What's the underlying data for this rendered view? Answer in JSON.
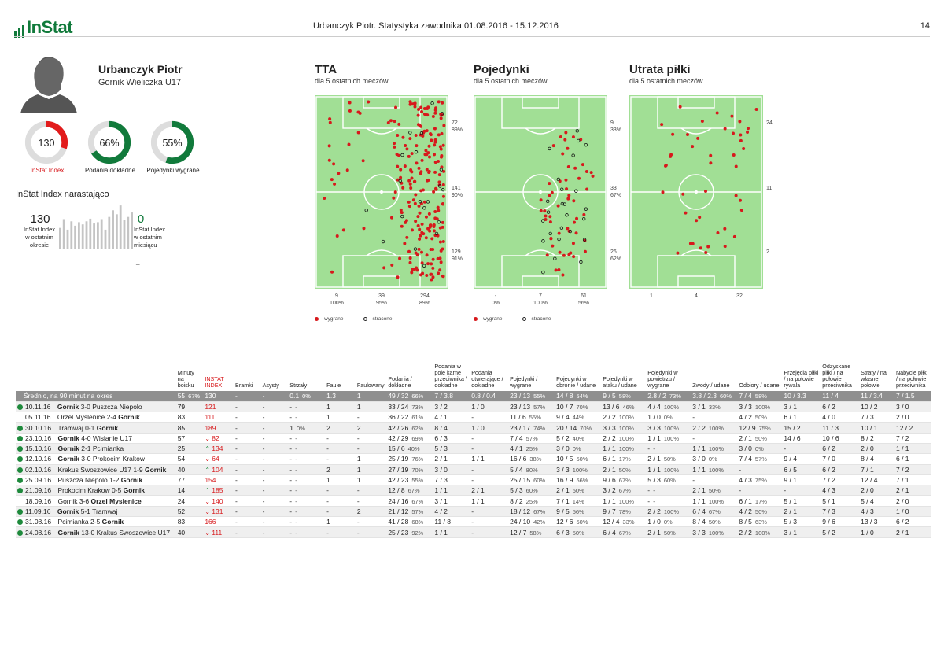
{
  "header": {
    "logo": "InStat",
    "title": "Urbanczyk Piotr. Statystyka zawodnika 01.08.2016 - 15.12.2016",
    "page": "14"
  },
  "player": {
    "name": "Urbanczyk Piotr",
    "team": "Gornik Wieliczka U17"
  },
  "donuts": [
    {
      "value": "130",
      "label": "InStat Index",
      "fraction": 0.3,
      "color": "#e21b1b",
      "label_color": "#d7191c"
    },
    {
      "value": "66%",
      "label": "Podania dokładne",
      "fraction": 0.66,
      "color": "#117a3b",
      "label_color": "#222"
    },
    {
      "value": "55%",
      "label": "Pojedynki wygrane",
      "fraction": 0.55,
      "color": "#117a3b",
      "label_color": "#222"
    }
  ],
  "cumulative": {
    "title": "InStat Index narastająco",
    "left_value": "130",
    "left_caption_1": "InStat Index",
    "left_caption_2": "w ostatnim",
    "left_caption_3": "okresie",
    "right_value": "0",
    "right_caption_1": "InStat Index",
    "right_caption_2": "w ostatnim",
    "right_caption_3": "miesiącu",
    "tail": "_",
    "bars": [
      0.47,
      0.67,
      0.43,
      0.62,
      0.52,
      0.6,
      0.55,
      0.62,
      0.68,
      0.57,
      0.6,
      0.67,
      0.43,
      0.72,
      0.87,
      0.78,
      0.98,
      0.65,
      0.72,
      0.82
    ]
  },
  "maps": [
    {
      "title": "TTA",
      "subtitle": "dla 5 ostatnich meczów",
      "side": [
        [
          "72",
          "89%"
        ],
        [
          "141",
          "90%"
        ],
        [
          "129",
          "91%"
        ]
      ],
      "bottom": [
        [
          "9",
          "100%"
        ],
        [
          "39",
          "95%"
        ],
        [
          "294",
          "89%"
        ]
      ],
      "legend_won": "- wygrane",
      "legend_lost": "- stracone"
    },
    {
      "title": "Pojedynki",
      "subtitle": "dla 5 ostatnich meczów",
      "side": [
        [
          "9",
          "33%"
        ],
        [
          "33",
          "67%"
        ],
        [
          "26",
          "62%"
        ]
      ],
      "bottom": [
        [
          "-",
          "0%"
        ],
        [
          "7",
          "100%"
        ],
        [
          "61",
          "56%"
        ]
      ],
      "legend_won": "- wygrane",
      "legend_lost": "- stracone"
    },
    {
      "title": "Utrata piłki",
      "subtitle": "dla 5 ostatnich meczów",
      "side": [
        [
          "24",
          ""
        ],
        [
          "11",
          ""
        ],
        [
          "2",
          ""
        ]
      ],
      "bottom": [
        [
          "1",
          ""
        ],
        [
          "4",
          ""
        ],
        [
          "32",
          ""
        ]
      ]
    }
  ],
  "table": {
    "headers": [
      "",
      "Minuty na boisku",
      "INSTAT INDEX",
      "Bramki",
      "Asysty",
      "Strzały",
      "Faule",
      "Faulowany",
      "Podania / dokładne",
      "Podania w pole karne przeciwnika / dokładne",
      "Podania otwierające / dokładne",
      "Pojedynki / wygrane",
      "Pojedynki w obronie / udane",
      "Pojedynki w ataku / udane",
      "Pojedynki w powietrzu / wygrane",
      "Zwody / udane",
      "Odbiory / udane",
      "Przejęcia piłki / na połowie rywala",
      "Odzyskane piłki / na połowie przeciwnika",
      "Straty / na własnej połowie",
      "Nabycie piłki / na połowie przeciwnika"
    ],
    "avg_row": [
      "Średnio, na 90 minut na okres",
      "55",
      "67%",
      "130",
      "-",
      "-",
      "0.1",
      "0%",
      "1.3",
      "1",
      "49 / 32",
      "66%",
      "7 / 3.8",
      "0.8 / 0.4",
      "23 / 13",
      "55%",
      "14 / 8",
      "54%",
      "9 / 5",
      "58%",
      "2.8 / 2",
      "73%",
      "3.8 / 2.3",
      "60%",
      "7 / 4",
      "58%",
      "10 / 3.3",
      "11 / 4",
      "11 / 3.4",
      "7 / 1.5"
    ],
    "rows": [
      {
        "date": "10.11.16",
        "dot": true,
        "pre": "",
        "bold": "Gornik",
        "mid": " 3-0 Puszcza Niepolo",
        "post": "",
        "min": "79",
        "arrow": "",
        "idx": "121",
        "b": "-",
        "a": "-",
        "s": "-",
        "sp": "-",
        "f": "1",
        "fl": "1",
        "p": "33 / 24",
        "pp": "73%",
        "pk": "3 / 2",
        "po": "1 / 0",
        "pw": "23 / 13",
        "pwp": "57%",
        "pd": "10 / 7",
        "pdp": "70%",
        "pa": "13 / 6",
        "pap": "46%",
        "ph": "4 / 4",
        "php": "100%",
        "z": "3 / 1",
        "zp": "33%",
        "o": "3 / 3",
        "op": "100%",
        "pr": "3 / 1",
        "od": "6 / 2",
        "st": "10 / 2",
        "nb": "3 / 0"
      },
      {
        "date": "05.11.16",
        "dot": false,
        "pre": "Orzel Myslenice 2-4 ",
        "bold": "Gornik",
        "mid": "",
        "post": "",
        "min": "83",
        "arrow": "",
        "idx": "111",
        "b": "-",
        "a": "-",
        "s": "-",
        "sp": "-",
        "f": "1",
        "fl": "-",
        "p": "36 / 22",
        "pp": "61%",
        "pk": "4 / 1",
        "po": "-",
        "pw": "11 / 6",
        "pwp": "55%",
        "pd": "9 / 4",
        "pdp": "44%",
        "pa": "2 / 2",
        "pap": "100%",
        "ph": "1 / 0",
        "php": "0%",
        "z": "-",
        "zp": "",
        "o": "4 / 2",
        "op": "50%",
        "pr": "6 / 1",
        "od": "4 / 0",
        "st": "7 / 3",
        "nb": "2 / 0"
      },
      {
        "date": "30.10.16",
        "dot": true,
        "pre": "Tramwaj 0-1 ",
        "bold": "Gornik",
        "mid": "",
        "post": "",
        "min": "85",
        "arrow": "",
        "idx": "189",
        "b": "-",
        "a": "-",
        "s": "1",
        "sp": "0%",
        "f": "2",
        "fl": "2",
        "p": "42 / 26",
        "pp": "62%",
        "pk": "8 / 4",
        "po": "1 / 0",
        "pw": "23 / 17",
        "pwp": "74%",
        "pd": "20 / 14",
        "pdp": "70%",
        "pa": "3 / 3",
        "pap": "100%",
        "ph": "3 / 3",
        "php": "100%",
        "z": "2 / 2",
        "zp": "100%",
        "o": "12 / 9",
        "op": "75%",
        "pr": "15 / 2",
        "od": "11 / 3",
        "st": "10 / 1",
        "nb": "12 / 2"
      },
      {
        "date": "23.10.16",
        "dot": true,
        "pre": "",
        "bold": "Gornik",
        "mid": " 4-0 Wislanie U17",
        "post": "",
        "min": "57",
        "arrow": "dn",
        "idx": "82",
        "b": "-",
        "a": "-",
        "s": "-",
        "sp": "-",
        "f": "-",
        "fl": "-",
        "p": "42 / 29",
        "pp": "69%",
        "pk": "6 / 3",
        "po": "-",
        "pw": "7 / 4",
        "pwp": "57%",
        "pd": "5 / 2",
        "pdp": "40%",
        "pa": "2 / 2",
        "pap": "100%",
        "ph": "1 / 1",
        "php": "100%",
        "z": "-",
        "zp": "",
        "o": "2 / 1",
        "op": "50%",
        "pr": "14 / 6",
        "od": "10 / 6",
        "st": "8 / 2",
        "nb": "7 / 2"
      },
      {
        "date": "15.10.16",
        "dot": true,
        "pre": "",
        "bold": "Gornik",
        "mid": " 2-1 Pcimianka",
        "post": "",
        "min": "25",
        "arrow": "up",
        "idx": "134",
        "b": "-",
        "a": "-",
        "s": "-",
        "sp": "-",
        "f": "-",
        "fl": "-",
        "p": "15 / 6",
        "pp": "40%",
        "pk": "5 / 3",
        "po": "-",
        "pw": "4 / 1",
        "pwp": "25%",
        "pd": "3 / 0",
        "pdp": "0%",
        "pa": "1 / 1",
        "pap": "100%",
        "ph": "-",
        "php": "-",
        "z": "1 / 1",
        "zp": "100%",
        "o": "3 / 0",
        "op": "0%",
        "pr": "-",
        "od": "6 / 2",
        "st": "2 / 0",
        "nb": "1 / 1"
      },
      {
        "date": "12.10.16",
        "dot": true,
        "pre": "",
        "bold": "Gornik",
        "mid": " 3-0 Prokocim Krakow",
        "post": "",
        "min": "54",
        "arrow": "dn",
        "idx": "64",
        "b": "-",
        "a": "-",
        "s": "-",
        "sp": "-",
        "f": "-",
        "fl": "1",
        "p": "25 / 19",
        "pp": "76%",
        "pk": "2 / 1",
        "po": "1 / 1",
        "pw": "16 / 6",
        "pwp": "38%",
        "pd": "10 / 5",
        "pdp": "50%",
        "pa": "6 / 1",
        "pap": "17%",
        "ph": "2 / 1",
        "php": "50%",
        "z": "3 / 0",
        "zp": "0%",
        "o": "7 / 4",
        "op": "57%",
        "pr": "9 / 4",
        "od": "7 / 0",
        "st": "8 / 4",
        "nb": "6 / 1"
      },
      {
        "date": "02.10.16",
        "dot": true,
        "pre": "Krakus Swoszowice U17 1-9 ",
        "bold": "Gornik",
        "mid": "",
        "post": "",
        "min": "40",
        "arrow": "up",
        "idx": "104",
        "b": "-",
        "a": "-",
        "s": "-",
        "sp": "-",
        "f": "2",
        "fl": "1",
        "p": "27 / 19",
        "pp": "70%",
        "pk": "3 / 0",
        "po": "-",
        "pw": "5 / 4",
        "pwp": "80%",
        "pd": "3 / 3",
        "pdp": "100%",
        "pa": "2 / 1",
        "pap": "50%",
        "ph": "1 / 1",
        "php": "100%",
        "z": "1 / 1",
        "zp": "100%",
        "o": "-",
        "op": "",
        "pr": "6 / 5",
        "od": "6 / 2",
        "st": "7 / 1",
        "nb": "7 / 2"
      },
      {
        "date": "25.09.16",
        "dot": true,
        "pre": "Puszcza Niepolo 1-2 ",
        "bold": "Gornik",
        "mid": "",
        "post": "",
        "min": "77",
        "arrow": "",
        "idx": "154",
        "b": "-",
        "a": "-",
        "s": "-",
        "sp": "-",
        "f": "1",
        "fl": "1",
        "p": "42 / 23",
        "pp": "55%",
        "pk": "7 / 3",
        "po": "-",
        "pw": "25 / 15",
        "pwp": "60%",
        "pd": "16 / 9",
        "pdp": "56%",
        "pa": "9 / 6",
        "pap": "67%",
        "ph": "5 / 3",
        "php": "60%",
        "z": "-",
        "zp": "",
        "o": "4 / 3",
        "op": "75%",
        "pr": "9 / 1",
        "od": "7 / 2",
        "st": "12 / 4",
        "nb": "7 / 1"
      },
      {
        "date": "21.09.16",
        "dot": true,
        "pre": "Prokocim Krakow 0-5 ",
        "bold": "Gornik",
        "mid": "",
        "post": "",
        "min": "14",
        "arrow": "up",
        "idx": "185",
        "b": "-",
        "a": "-",
        "s": "-",
        "sp": "-",
        "f": "-",
        "fl": "-",
        "p": "12 / 8",
        "pp": "67%",
        "pk": "1 / 1",
        "po": "2 / 1",
        "pw": "5 / 3",
        "pwp": "60%",
        "pd": "2 / 1",
        "pdp": "50%",
        "pa": "3 / 2",
        "pap": "67%",
        "ph": "-",
        "php": "-",
        "z": "2 / 1",
        "zp": "50%",
        "o": "-",
        "op": "",
        "pr": "-",
        "od": "4 / 3",
        "st": "2 / 0",
        "nb": "2 / 1"
      },
      {
        "date": "18.09.16",
        "dot": false,
        "pre": "Gornik 3-6 ",
        "bold": "Orzel Myslenice",
        "mid": "",
        "post": "",
        "min": "24",
        "arrow": "dn",
        "idx": "140",
        "b": "-",
        "a": "-",
        "s": "-",
        "sp": "-",
        "f": "-",
        "fl": "-",
        "p": "24 / 16",
        "pp": "67%",
        "pk": "3 / 1",
        "po": "1 / 1",
        "pw": "8 / 2",
        "pwp": "25%",
        "pd": "7 / 1",
        "pdp": "14%",
        "pa": "1 / 1",
        "pap": "100%",
        "ph": "-",
        "php": "-",
        "z": "1 / 1",
        "zp": "100%",
        "o": "6 / 1",
        "op": "17%",
        "pr": "5 / 1",
        "od": "5 / 1",
        "st": "5 / 4",
        "nb": "2 / 0"
      },
      {
        "date": "11.09.16",
        "dot": true,
        "pre": "",
        "bold": "Gornik",
        "mid": " 5-1 Tramwaj",
        "post": "",
        "min": "52",
        "arrow": "dn",
        "idx": "131",
        "b": "-",
        "a": "-",
        "s": "-",
        "sp": "-",
        "f": "-",
        "fl": "2",
        "p": "21 / 12",
        "pp": "57%",
        "pk": "4 / 2",
        "po": "-",
        "pw": "18 / 12",
        "pwp": "67%",
        "pd": "9 / 5",
        "pdp": "56%",
        "pa": "9 / 7",
        "pap": "78%",
        "ph": "2 / 2",
        "php": "100%",
        "z": "6 / 4",
        "zp": "67%",
        "o": "4 / 2",
        "op": "50%",
        "pr": "2 / 1",
        "od": "7 / 3",
        "st": "4 / 3",
        "nb": "1 / 0"
      },
      {
        "date": "31.08.16",
        "dot": true,
        "pre": "Pcimianka 2-5 ",
        "bold": "Gornik",
        "mid": "",
        "post": "",
        "min": "83",
        "arrow": "",
        "idx": "166",
        "b": "-",
        "a": "-",
        "s": "-",
        "sp": "-",
        "f": "1",
        "fl": "-",
        "p": "41 / 28",
        "pp": "68%",
        "pk": "11 / 8",
        "po": "-",
        "pw": "24 / 10",
        "pwp": "42%",
        "pd": "12 / 6",
        "pdp": "50%",
        "pa": "12 / 4",
        "pap": "33%",
        "ph": "1 / 0",
        "php": "0%",
        "z": "8 / 4",
        "zp": "50%",
        "o": "8 / 5",
        "op": "63%",
        "pr": "5 / 3",
        "od": "9 / 6",
        "st": "13 / 3",
        "nb": "6 / 2"
      },
      {
        "date": "24.08.16",
        "dot": true,
        "pre": "",
        "bold": "Gornik",
        "mid": " 13-0 Krakus Swoszowice U17",
        "post": "",
        "min": "40",
        "arrow": "dn",
        "idx": "111",
        "b": "-",
        "a": "-",
        "s": "-",
        "sp": "-",
        "f": "-",
        "fl": "-",
        "p": "25 / 23",
        "pp": "92%",
        "pk": "1 / 1",
        "po": "-",
        "pw": "12 / 7",
        "pwp": "58%",
        "pd": "6 / 3",
        "pdp": "50%",
        "pa": "6 / 4",
        "pap": "67%",
        "ph": "2 / 1",
        "php": "50%",
        "z": "3 / 3",
        "zp": "100%",
        "o": "2 / 2",
        "op": "100%",
        "pr": "3 / 1",
        "od": "5 / 2",
        "st": "1 / 0",
        "nb": "2 / 1"
      }
    ]
  },
  "colors": {
    "brand": "#117a3b",
    "accent_red": "#d7191c",
    "pitch": "#a1df95",
    "avg_row": "#8f8f8f"
  }
}
